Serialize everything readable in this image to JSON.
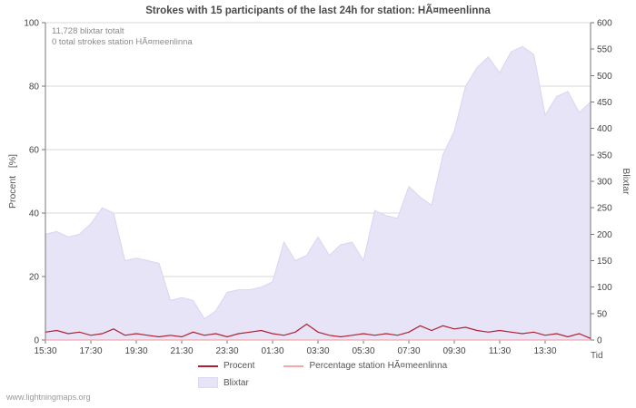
{
  "title": "Strokes with 15 participants of the last 24h for station: HÃ¤meenlinna",
  "annotations": {
    "total": "11,728 blixtar totalt",
    "station": "0 total strokes station HÃ¤meenlinna"
  },
  "axes": {
    "left_label": "Procent   [%]",
    "right_label": "Blixtar",
    "x_label": "Tid",
    "left_ticks": [
      0,
      20,
      40,
      60,
      80,
      100
    ],
    "right_ticks": [
      0,
      50,
      100,
      150,
      200,
      250,
      300,
      350,
      400,
      450,
      500,
      550,
      600
    ],
    "x_tick_labels": [
      "15:30",
      "17:30",
      "19:30",
      "21:30",
      "23:30",
      "01:30",
      "03:30",
      "05:30",
      "07:30",
      "09:30",
      "11:30",
      "13:30"
    ]
  },
  "legend": {
    "procent": "Procent",
    "station": "Percentage station HÃ¤meenlinna",
    "blixtar": "Blixtar"
  },
  "watermark": "www.lightningmaps.org",
  "colors": {
    "area_fill": "#e7e4f8",
    "area_stroke": "#d9d4f0",
    "procent_line": "#b02030",
    "station_line": "#f6a8a8",
    "grid": "#d9d9d9",
    "axis": "#777777",
    "tick_text": "#444444"
  },
  "chart_data": {
    "type": "area",
    "title": "Strokes with 15 participants of the last 24h for station: HÃ¤meenlinna",
    "xlabel": "Tid",
    "ylabel_left": "Procent [%]",
    "ylabel_right": "Blixtar",
    "left_ylim": [
      0,
      100
    ],
    "right_ylim": [
      0,
      600
    ],
    "grid": "horizontal",
    "legend_position": "bottom",
    "x": [
      "15:30",
      "16:00",
      "16:30",
      "17:00",
      "17:30",
      "18:00",
      "18:30",
      "19:00",
      "19:30",
      "20:00",
      "20:30",
      "21:00",
      "21:30",
      "22:00",
      "22:30",
      "23:00",
      "23:30",
      "00:00",
      "00:30",
      "01:00",
      "01:30",
      "02:00",
      "02:30",
      "03:00",
      "03:30",
      "04:00",
      "04:30",
      "05:00",
      "05:30",
      "06:00",
      "06:30",
      "07:00",
      "07:30",
      "08:00",
      "08:30",
      "09:00",
      "09:30",
      "10:00",
      "10:30",
      "11:00",
      "11:30",
      "12:00",
      "12:30",
      "13:00",
      "13:30",
      "14:00",
      "14:30",
      "15:00",
      "15:30"
    ],
    "series": [
      {
        "name": "Blixtar",
        "type": "area",
        "axis": "right",
        "color": "#e7e4f8",
        "values": [
          200,
          205,
          195,
          200,
          220,
          250,
          240,
          150,
          155,
          150,
          145,
          75,
          80,
          75,
          40,
          55,
          90,
          95,
          95,
          100,
          110,
          185,
          150,
          160,
          195,
          160,
          180,
          185,
          150,
          245,
          235,
          230,
          290,
          270,
          255,
          350,
          395,
          480,
          515,
          535,
          505,
          545,
          555,
          540,
          425,
          460,
          470,
          430,
          450
        ]
      },
      {
        "name": "Procent",
        "type": "line",
        "axis": "left",
        "color": "#b02030",
        "values": [
          2.5,
          3,
          2,
          2.5,
          1.5,
          2,
          3.5,
          1.5,
          2,
          1.5,
          1,
          1.5,
          1,
          2.5,
          1.5,
          2,
          1,
          2,
          2.5,
          3,
          2,
          1.5,
          2.5,
          5,
          2.5,
          1.5,
          1,
          1.5,
          2,
          1.5,
          2,
          1.5,
          2.5,
          4.5,
          3,
          4.5,
          3.5,
          4,
          3,
          2.5,
          3,
          2.5,
          2,
          2.5,
          1.5,
          2,
          1,
          2,
          0.5
        ]
      },
      {
        "name": "Percentage station HÃ¤meenlinna",
        "type": "line",
        "axis": "left",
        "color": "#f6a8a8",
        "values": [
          0,
          0,
          0,
          0,
          0,
          0,
          0,
          0,
          0,
          0,
          0,
          0,
          0,
          0,
          0,
          0,
          0,
          0,
          0,
          0,
          0,
          0,
          0,
          0,
          0,
          0,
          0,
          0,
          0,
          0,
          0,
          0,
          0,
          0,
          0,
          0,
          0,
          0,
          0,
          0,
          0,
          0,
          0,
          0,
          0,
          0,
          0,
          0,
          0
        ]
      }
    ]
  }
}
